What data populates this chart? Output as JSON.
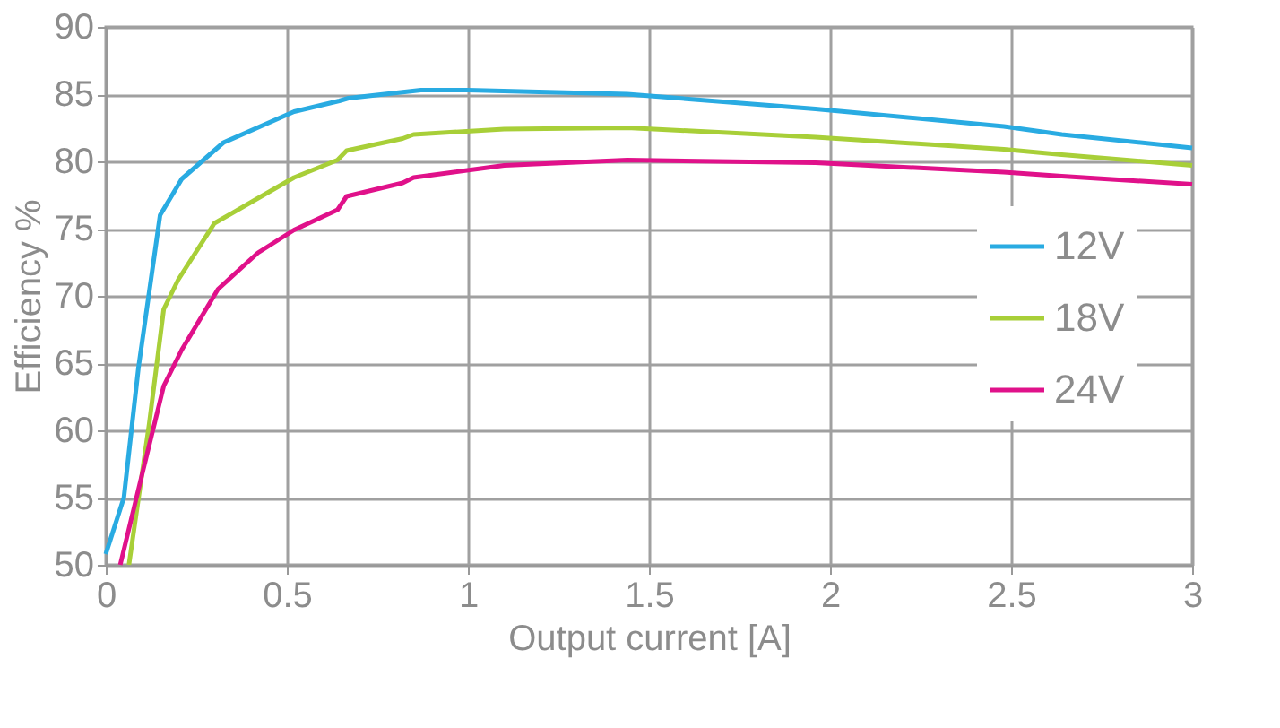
{
  "chart_data": {
    "type": "line",
    "xlabel": "Output current [A]",
    "ylabel": "Efficiency %",
    "xlim": [
      0,
      3
    ],
    "ylim": [
      50,
      90
    ],
    "xticks": [
      0,
      0.5,
      1,
      1.5,
      2,
      2.5,
      3
    ],
    "yticks": [
      50,
      55,
      60,
      65,
      70,
      75,
      80,
      85,
      90
    ],
    "grid": true,
    "legend": "right",
    "marker": "none",
    "line_style": "solid",
    "series": [
      {
        "name": "12V",
        "color": "#29abe2",
        "x": [
          0,
          0.05,
          0.09,
          0.15,
          0.21,
          0.325,
          0.52,
          0.645,
          0.67,
          0.87,
          1.0,
          1.44,
          1.96,
          2.48,
          2.64,
          3
        ],
        "values": [
          50.8,
          55,
          64.6,
          76,
          78.7,
          81.4,
          83.7,
          84.5,
          84.7,
          85.3,
          85.3,
          85,
          83.9,
          82.6,
          82,
          81
        ]
      },
      {
        "name": "18V",
        "color": "#a8cf38",
        "x": [
          0.064,
          0.12,
          0.16,
          0.2,
          0.3,
          0.41,
          0.52,
          0.64,
          0.665,
          0.82,
          0.85,
          1.1,
          1.44,
          1.96,
          2.48,
          2.64,
          3
        ],
        "values": [
          50,
          60.5,
          69,
          71.2,
          75.4,
          77.1,
          78.8,
          80.1,
          80.8,
          81.7,
          82,
          82.4,
          82.5,
          81.8,
          80.9,
          80.5,
          79.7
        ]
      },
      {
        "name": "24V",
        "color": "#e0118a",
        "x": [
          0.04,
          0.1,
          0.16,
          0.21,
          0.31,
          0.42,
          0.52,
          0.64,
          0.665,
          0.82,
          0.85,
          1.1,
          1.44,
          1.96,
          2.48,
          2.64,
          3
        ],
        "values": [
          50,
          56.7,
          63.3,
          66,
          70.5,
          73.2,
          74.9,
          76.4,
          77.4,
          78.4,
          78.8,
          79.7,
          80.1,
          79.9,
          79.2,
          78.9,
          78.3
        ]
      }
    ]
  }
}
